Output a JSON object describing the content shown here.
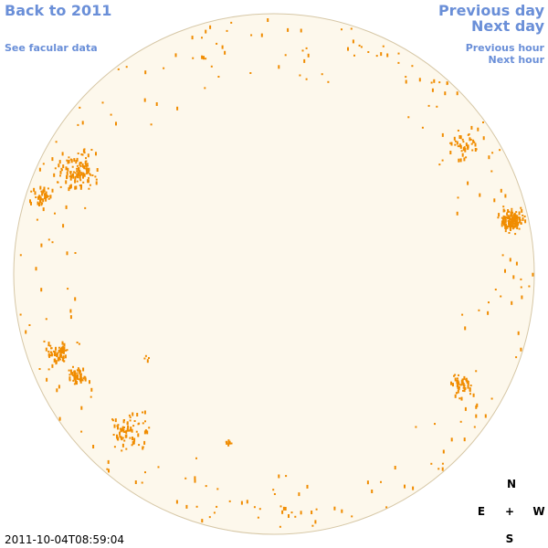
{
  "nav": {
    "back_year": "Back to 2011",
    "facular": "See facular data",
    "previous_day": "Previous day",
    "next_day": "Next day",
    "previous_hour": "Previous hour",
    "next_hour": "Next hour"
  },
  "timestamp": "2011-10-04T08:59:04",
  "compass": {
    "north": "N",
    "east": "E",
    "center": "+",
    "west": "W",
    "south": "S"
  }
}
